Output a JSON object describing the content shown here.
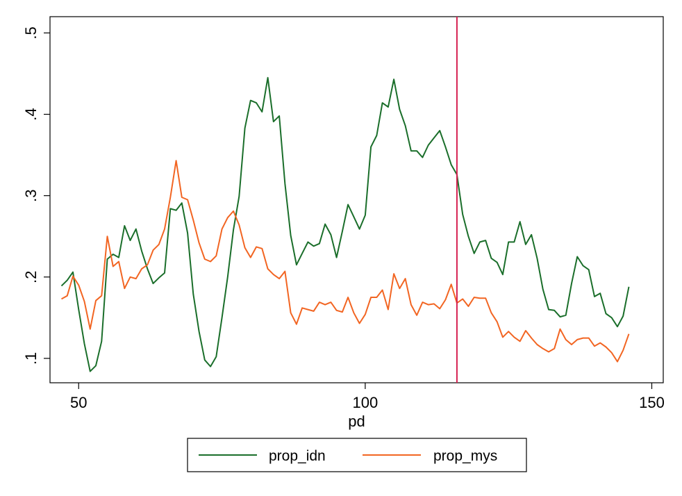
{
  "chart_data": {
    "type": "line",
    "xlabel": "pd",
    "ylabel": "",
    "xlim": [
      45,
      152
    ],
    "ylim": [
      0.07,
      0.52
    ],
    "xticks": [
      50,
      100,
      150
    ],
    "xtick_labels": [
      "50",
      "100",
      "150"
    ],
    "yticks": [
      0.1,
      0.2,
      0.3,
      0.4,
      0.5
    ],
    "ytick_labels": [
      ".1",
      ".2",
      ".3",
      ".4",
      ".5"
    ],
    "grid": false,
    "legend_position": "bottom",
    "reference_line": {
      "axis": "x",
      "value": 116,
      "color": "#d62050"
    },
    "series": [
      {
        "name": "prop_idn",
        "color": "#1a6e2a",
        "x": [
          47,
          48,
          49,
          50,
          51,
          52,
          53,
          54,
          55,
          56,
          57,
          58,
          59,
          60,
          61,
          62,
          63,
          64,
          65,
          66,
          67,
          68,
          69,
          70,
          71,
          72,
          73,
          74,
          75,
          76,
          77,
          78,
          79,
          80,
          81,
          82,
          83,
          84,
          85,
          86,
          87,
          88,
          89,
          90,
          91,
          92,
          93,
          94,
          95,
          96,
          97,
          98,
          99,
          100,
          101,
          102,
          103,
          104,
          105,
          106,
          107,
          108,
          109,
          110,
          111,
          112,
          113,
          114,
          115,
          116,
          117,
          118,
          119,
          120,
          121,
          122,
          123,
          124,
          125,
          126,
          127,
          128,
          129,
          130,
          131,
          132,
          133,
          134,
          135,
          136,
          137,
          138,
          139,
          140,
          141,
          142,
          143,
          144,
          145,
          146
        ],
        "y": [
          0.189,
          0.196,
          0.206,
          0.16,
          0.118,
          0.084,
          0.091,
          0.121,
          0.222,
          0.228,
          0.224,
          0.263,
          0.245,
          0.259,
          0.232,
          0.21,
          0.192,
          0.199,
          0.205,
          0.284,
          0.282,
          0.291,
          0.254,
          0.179,
          0.133,
          0.098,
          0.09,
          0.102,
          0.15,
          0.2,
          0.258,
          0.299,
          0.383,
          0.417,
          0.414,
          0.403,
          0.445,
          0.391,
          0.398,
          0.315,
          0.251,
          0.215,
          0.229,
          0.243,
          0.238,
          0.241,
          0.265,
          0.252,
          0.224,
          0.256,
          0.289,
          0.274,
          0.259,
          0.276,
          0.36,
          0.374,
          0.414,
          0.409,
          0.443,
          0.406,
          0.386,
          0.355,
          0.355,
          0.347,
          0.362,
          0.371,
          0.38,
          0.36,
          0.338,
          0.326,
          0.277,
          0.25,
          0.229,
          0.243,
          0.245,
          0.223,
          0.218,
          0.203,
          0.243,
          0.243,
          0.268,
          0.24,
          0.252,
          0.223,
          0.185,
          0.16,
          0.159,
          0.151,
          0.153,
          0.192,
          0.225,
          0.214,
          0.209,
          0.176,
          0.18,
          0.155,
          0.15,
          0.139,
          0.152,
          0.188
        ]
      },
      {
        "name": "prop_mys",
        "color": "#f26522",
        "x": [
          47,
          48,
          49,
          50,
          51,
          52,
          53,
          54,
          55,
          56,
          57,
          58,
          59,
          60,
          61,
          62,
          63,
          64,
          65,
          66,
          67,
          68,
          69,
          70,
          71,
          72,
          73,
          74,
          75,
          76,
          77,
          78,
          79,
          80,
          81,
          82,
          83,
          84,
          85,
          86,
          87,
          88,
          89,
          90,
          91,
          92,
          93,
          94,
          95,
          96,
          97,
          98,
          99,
          100,
          101,
          102,
          103,
          104,
          105,
          106,
          107,
          108,
          109,
          110,
          111,
          112,
          113,
          114,
          115,
          116,
          117,
          118,
          119,
          120,
          121,
          122,
          123,
          124,
          125,
          126,
          127,
          128,
          129,
          130,
          131,
          132,
          133,
          134,
          135,
          136,
          137,
          138,
          139,
          140,
          141,
          142,
          143,
          144,
          145,
          146
        ],
        "y": [
          0.173,
          0.177,
          0.201,
          0.19,
          0.17,
          0.136,
          0.171,
          0.177,
          0.25,
          0.213,
          0.219,
          0.186,
          0.2,
          0.198,
          0.21,
          0.215,
          0.233,
          0.24,
          0.259,
          0.298,
          0.343,
          0.298,
          0.295,
          0.27,
          0.242,
          0.222,
          0.219,
          0.226,
          0.259,
          0.273,
          0.281,
          0.264,
          0.236,
          0.224,
          0.237,
          0.235,
          0.21,
          0.203,
          0.198,
          0.207,
          0.156,
          0.142,
          0.162,
          0.16,
          0.158,
          0.169,
          0.166,
          0.169,
          0.159,
          0.157,
          0.175,
          0.156,
          0.143,
          0.154,
          0.175,
          0.175,
          0.184,
          0.16,
          0.204,
          0.186,
          0.198,
          0.166,
          0.153,
          0.169,
          0.166,
          0.167,
          0.161,
          0.172,
          0.191,
          0.168,
          0.173,
          0.164,
          0.175,
          0.174,
          0.174,
          0.156,
          0.145,
          0.126,
          0.133,
          0.126,
          0.121,
          0.134,
          0.125,
          0.117,
          0.112,
          0.108,
          0.112,
          0.136,
          0.123,
          0.117,
          0.123,
          0.125,
          0.125,
          0.115,
          0.119,
          0.114,
          0.107,
          0.096,
          0.11,
          0.13
        ]
      }
    ]
  }
}
